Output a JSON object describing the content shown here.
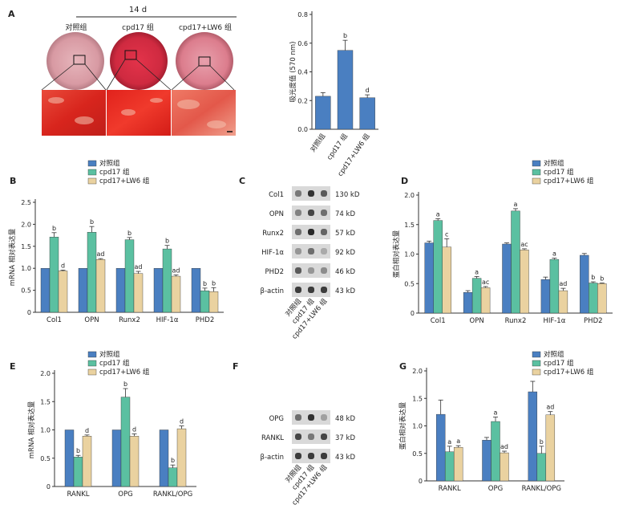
{
  "colors": {
    "control": "#4a7fc1",
    "cpd17": "#5bc0a1",
    "cpd17_lw6": "#ead2a0"
  },
  "legend": [
    "对照组",
    "cpd17 组",
    "cpd17+LW6 组"
  ],
  "panel_letters": [
    "A",
    "B",
    "C",
    "D",
    "E",
    "F",
    "G"
  ],
  "panel_a": {
    "timepoint": "14 d",
    "groups": [
      "对照组",
      "cpd17 组",
      "cpd17+LW6 组"
    ]
  },
  "blot_c": {
    "rows": [
      {
        "protein": "Col1",
        "size": "130 kD"
      },
      {
        "protein": "OPN",
        "size": "74 kD"
      },
      {
        "protein": "Runx2",
        "size": "57 kD"
      },
      {
        "protein": "HIF-1α",
        "size": "92 kD"
      },
      {
        "protein": "PHD2",
        "size": "46 kD"
      },
      {
        "protein": "β-actin",
        "size": "43 kD"
      }
    ],
    "lanes": [
      "对照组",
      "cpd17 组",
      "cpd17+LW6 组"
    ]
  },
  "blot_f": {
    "rows": [
      {
        "protein": "OPG",
        "size": "48 kD"
      },
      {
        "protein": "RANKL",
        "size": "37 kD"
      },
      {
        "protein": "β-actin",
        "size": "43 kD"
      }
    ],
    "lanes": [
      "对照组",
      "cpd17 组",
      "cpd17+LW6 组"
    ]
  },
  "chart_data": [
    {
      "panel": "A",
      "type": "bar",
      "categories": [
        "对照组",
        "cpd17 组",
        "cpd17+LW6 组"
      ],
      "values": [
        0.23,
        0.55,
        0.22
      ],
      "errors": [
        0.025,
        0.07,
        0.02
      ],
      "sig": [
        "",
        "b",
        "d"
      ],
      "ylabel": "吸光度值 (570 nm)",
      "ylim": [
        0,
        0.8
      ],
      "yticks": [
        "0.0",
        "0.2",
        "0.4",
        "0.6",
        "0.8"
      ]
    },
    {
      "panel": "B",
      "type": "bar",
      "categories": [
        "Col1",
        "OPN",
        "Runx2",
        "HIF-1α",
        "PHD2"
      ],
      "series": [
        {
          "name": "对照组",
          "values": [
            1.0,
            1.0,
            1.0,
            1.0,
            1.0
          ],
          "errors": [
            0,
            0,
            0,
            0,
            0
          ],
          "sig": [
            "",
            "",
            "",
            "",
            ""
          ]
        },
        {
          "name": "cpd17 组",
          "values": [
            1.71,
            1.82,
            1.65,
            1.44,
            0.49
          ],
          "errors": [
            0.1,
            0.13,
            0.05,
            0.08,
            0.06
          ],
          "sig": [
            "b",
            "b",
            "b",
            "b",
            "b"
          ]
        },
        {
          "name": "cpd17+LW6 组",
          "values": [
            0.94,
            1.2,
            0.88,
            0.82,
            0.47
          ],
          "errors": [
            0.02,
            0.02,
            0.05,
            0.03,
            0.09
          ],
          "sig": [
            "d",
            "ad",
            "ad",
            "ad",
            "b"
          ]
        }
      ],
      "ylabel": "mRNA 相对表达量",
      "ylim": [
        0,
        2.5
      ],
      "yticks": [
        "0",
        "0.5",
        "1.0",
        "1.5",
        "2.0",
        "2.5"
      ]
    },
    {
      "panel": "D",
      "type": "bar",
      "categories": [
        "Col1",
        "OPN",
        "Runx2",
        "HIF-1α",
        "PHD2"
      ],
      "series": [
        {
          "name": "对照组",
          "values": [
            1.19,
            0.35,
            1.17,
            0.57,
            0.98
          ],
          "errors": [
            0.03,
            0.03,
            0.02,
            0.04,
            0.03
          ],
          "sig": [
            "",
            "",
            "",
            "",
            ""
          ]
        },
        {
          "name": "cpd17 组",
          "values": [
            1.57,
            0.59,
            1.73,
            0.91,
            0.51
          ],
          "errors": [
            0.03,
            0.03,
            0.04,
            0.02,
            0.02
          ],
          "sig": [
            "a",
            "a",
            "a",
            "a",
            "b"
          ]
        },
        {
          "name": "cpd17+LW6 组",
          "values": [
            1.12,
            0.43,
            1.07,
            0.38,
            0.5
          ],
          "errors": [
            0.14,
            0.02,
            0.02,
            0.04,
            0.01
          ],
          "sig": [
            "c",
            "ac",
            "ac",
            "ad",
            "b"
          ]
        }
      ],
      "ylabel": "蛋白相对表达量",
      "ylim": [
        0,
        2.0
      ],
      "yticks": [
        "0",
        "0.5",
        "1.0",
        "1.5",
        "2.0"
      ]
    },
    {
      "panel": "E",
      "type": "bar",
      "categories": [
        "RANKL",
        "OPG",
        "RANKL/OPG"
      ],
      "series": [
        {
          "name": "对照组",
          "values": [
            1.0,
            1.0,
            1.0
          ],
          "errors": [
            0,
            0,
            0
          ],
          "sig": [
            "",
            "",
            ""
          ]
        },
        {
          "name": "cpd17 组",
          "values": [
            0.52,
            1.58,
            0.33
          ],
          "errors": [
            0.03,
            0.15,
            0.05
          ],
          "sig": [
            "b",
            "b",
            "b"
          ]
        },
        {
          "name": "cpd17+LW6 组",
          "values": [
            0.89,
            0.89,
            1.02
          ],
          "errors": [
            0.02,
            0.04,
            0.05
          ],
          "sig": [
            "d",
            "d",
            "d"
          ]
        }
      ],
      "ylabel": "mRNA 相对表达量",
      "ylim": [
        0,
        2.0
      ],
      "yticks": [
        "0",
        "0.5",
        "1.0",
        "1.5",
        "2.0"
      ]
    },
    {
      "panel": "G",
      "type": "bar",
      "categories": [
        "RANKL",
        "OPG",
        "RANKL/OPG"
      ],
      "series": [
        {
          "name": "对照组",
          "values": [
            1.21,
            0.74,
            1.62
          ],
          "errors": [
            0.26,
            0.05,
            0.19
          ],
          "sig": [
            "",
            "",
            ""
          ]
        },
        {
          "name": "cpd17 组",
          "values": [
            0.53,
            1.08,
            0.5
          ],
          "errors": [
            0.1,
            0.08,
            0.13
          ],
          "sig": [
            "a",
            "a",
            "b"
          ]
        },
        {
          "name": "cpd17+LW6 组",
          "values": [
            0.61,
            0.51,
            1.2
          ],
          "errors": [
            0.03,
            0.03,
            0.06
          ],
          "sig": [
            "a",
            "ad",
            "ad"
          ]
        }
      ],
      "ylabel": "蛋白相对表达量",
      "ylim": [
        0,
        2.0
      ],
      "yticks": [
        "0",
        "0.5",
        "1.0",
        "1.5",
        "2.0"
      ]
    }
  ]
}
